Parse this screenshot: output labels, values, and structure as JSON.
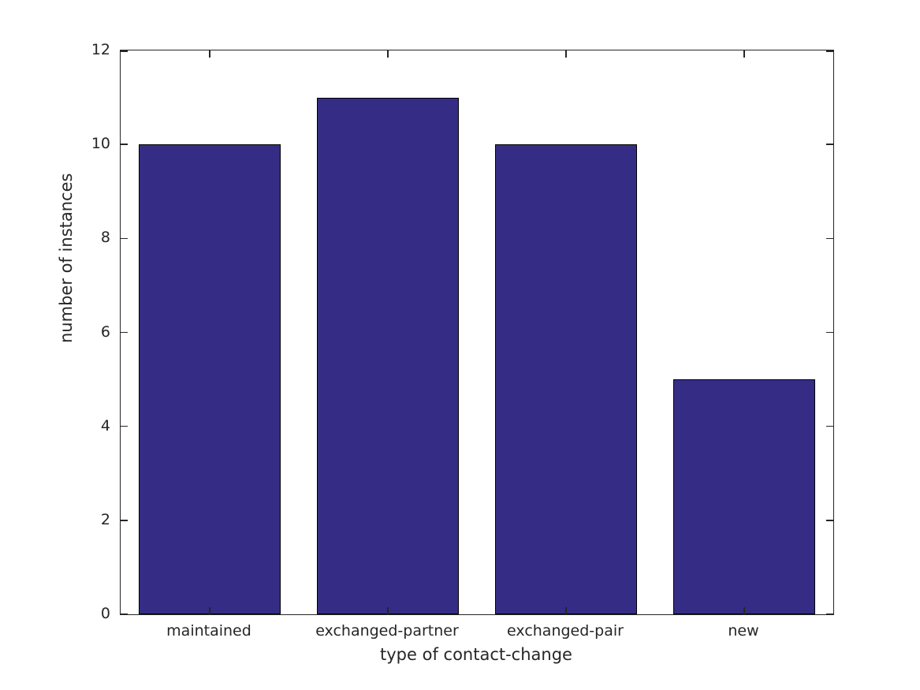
{
  "chart_data": {
    "type": "bar",
    "categories": [
      "maintained",
      "exchanged-partner",
      "exchanged-pair",
      "new"
    ],
    "values": [
      10,
      11,
      10,
      5
    ],
    "title": "",
    "xlabel": "type of contact-change",
    "ylabel": "number of instances",
    "ylim": [
      0,
      12
    ],
    "yticks": [
      0,
      2,
      4,
      6,
      8,
      10,
      12
    ],
    "bar_width_fraction": 0.8,
    "grid": false,
    "legend_position": "none",
    "colors": {
      "bar_fill": "#352d85",
      "bar_edge": "#000000",
      "axis": "#262626",
      "text": "#262626",
      "background": "#ffffff"
    }
  }
}
